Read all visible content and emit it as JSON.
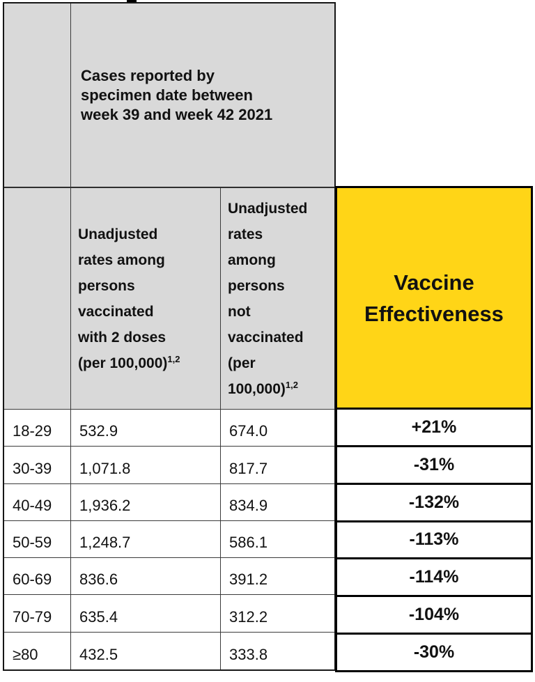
{
  "table": {
    "colors": {
      "header_grey": "#d9d9d9",
      "ve_yellow": "#ffd517",
      "border_black": "#000000"
    },
    "spanning_header_lines": [
      "Cases reported by",
      "specimen date between",
      "week 39 and week 42 2021"
    ],
    "headers": {
      "vaccinated": {
        "lines": [
          "Unadjusted",
          "rates among",
          "persons",
          "vaccinated",
          "with 2 doses",
          "(per 100,000)"
        ],
        "sup": "1,2"
      },
      "unvaccinated": {
        "lines": [
          "Unadjusted",
          "rates",
          "among",
          "persons",
          "not",
          "vaccinated",
          "(per",
          "100,000)"
        ],
        "sup": "1,2"
      },
      "vaccine_effectiveness": {
        "lines": [
          "Vaccine",
          "Effectiveness"
        ]
      }
    },
    "rows": [
      {
        "age": "18-29",
        "vaccinated_rate": "532.9",
        "unvaccinated_rate": "674.0",
        "ve": "+21%"
      },
      {
        "age": "30-39",
        "vaccinated_rate": "1,071.8",
        "unvaccinated_rate": "817.7",
        "ve": "-31%"
      },
      {
        "age": "40-49",
        "vaccinated_rate": "1,936.2",
        "unvaccinated_rate": "834.9",
        "ve": "-132%"
      },
      {
        "age": "50-59",
        "vaccinated_rate": "1,248.7",
        "unvaccinated_rate": "586.1",
        "ve": "-113%"
      },
      {
        "age": "60-69",
        "vaccinated_rate": "836.6",
        "unvaccinated_rate": "391.2",
        "ve": "-114%"
      },
      {
        "age": "70-79",
        "vaccinated_rate": "635.4",
        "unvaccinated_rate": "312.2",
        "ve": "-104%"
      },
      {
        "age": "≥80",
        "vaccinated_rate": "432.5",
        "unvaccinated_rate": "333.8",
        "ve": "-30%"
      }
    ]
  }
}
